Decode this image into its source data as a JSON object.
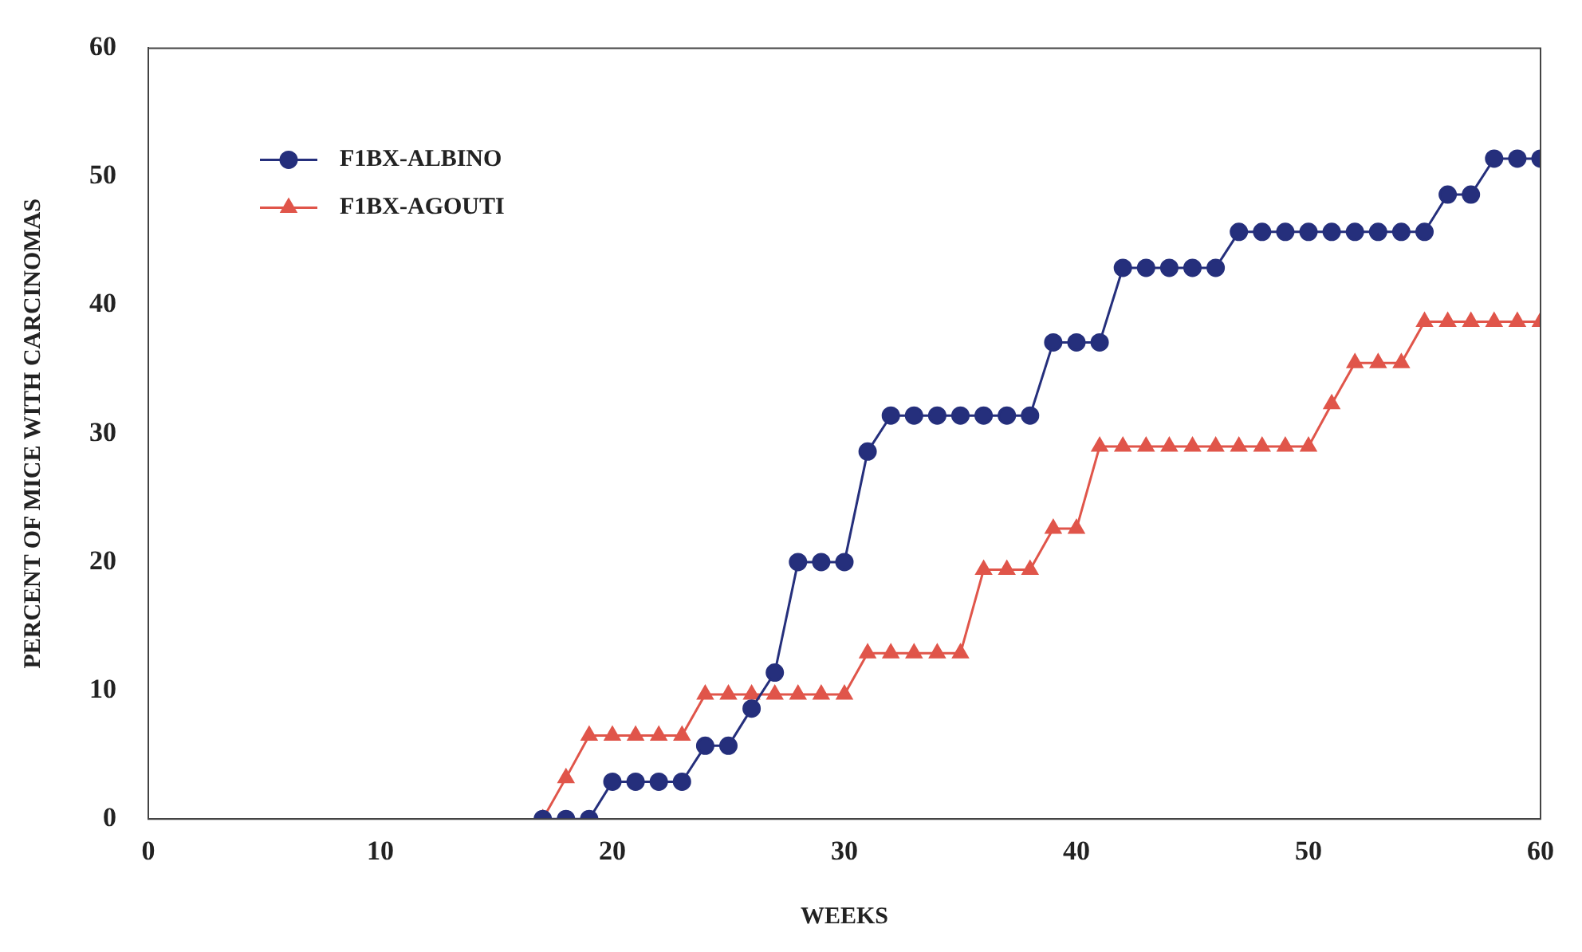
{
  "chart_data": {
    "type": "line",
    "xlabel": "WEEKS",
    "ylabel": "PERCENT OF MICE WITH CARCINOMAS",
    "xlim": [
      0,
      60
    ],
    "xticks": [
      0,
      10,
      20,
      30,
      40,
      50,
      60
    ],
    "ylim": [
      0,
      60
    ],
    "yticks": [
      0,
      10,
      20,
      30,
      40,
      50,
      60
    ],
    "grid": false,
    "legend": "top left",
    "line_style": "solid",
    "x": [
      17,
      18,
      19,
      20,
      21,
      22,
      23,
      24,
      25,
      26,
      27,
      28,
      29,
      30,
      31,
      32,
      33,
      34,
      35,
      36,
      37,
      38,
      39,
      40,
      41,
      42,
      43,
      44,
      45,
      46,
      47,
      48,
      49,
      50,
      51,
      52,
      53,
      54,
      55,
      56,
      57,
      58,
      59,
      60
    ],
    "series": [
      {
        "name": "F1BX-ALBINO",
        "color": "#252f7c",
        "marker": "circle",
        "values": [
          0,
          0,
          0,
          2.9,
          2.9,
          2.9,
          2.9,
          5.7,
          5.7,
          8.6,
          11.4,
          20,
          20,
          20,
          28.6,
          31.4,
          31.4,
          31.4,
          31.4,
          31.4,
          31.4,
          31.4,
          37.1,
          37.1,
          37.1,
          42.9,
          42.9,
          42.9,
          42.9,
          42.9,
          45.7,
          45.7,
          45.7,
          45.7,
          45.7,
          45.7,
          45.7,
          45.7,
          45.7,
          48.6,
          48.6,
          51.4,
          51.4,
          51.4
        ]
      },
      {
        "name": "F1BX-AGOUTI",
        "color": "#e0554a",
        "marker": "triangle",
        "values": [
          0,
          3.2,
          6.5,
          6.5,
          6.5,
          6.5,
          6.5,
          9.7,
          9.7,
          9.7,
          9.7,
          9.7,
          9.7,
          9.7,
          12.9,
          12.9,
          12.9,
          12.9,
          12.9,
          19.4,
          19.4,
          19.4,
          22.6,
          22.6,
          29,
          29,
          29,
          29,
          29,
          29,
          29,
          29,
          29,
          29,
          32.3,
          35.5,
          35.5,
          35.5,
          38.7,
          38.7,
          38.7,
          38.7,
          38.7,
          38.7
        ]
      }
    ]
  }
}
